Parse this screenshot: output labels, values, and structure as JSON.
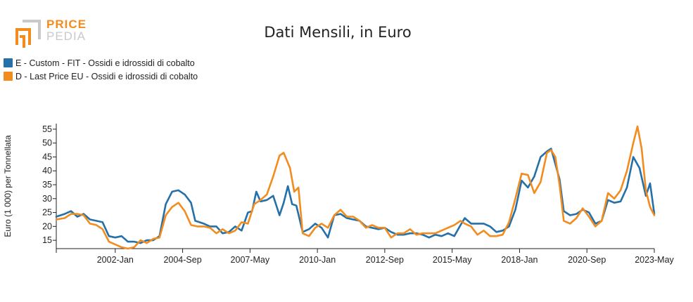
{
  "logo": {
    "line1": "PRICE",
    "line2": "PEDIA"
  },
  "colors": {
    "series1": "#2470a8",
    "series2": "#f28c1e",
    "axis": "#222222"
  },
  "chart_data": {
    "type": "line",
    "title": "Dati Mensili, in Euro",
    "ylabel": "Euro (1 000) per Tonnellata",
    "xlabel": "",
    "ylim": [
      12,
      57
    ],
    "xlim": [
      "1999-09",
      "2023-05"
    ],
    "yticks": [
      15,
      20,
      25,
      30,
      35,
      40,
      45,
      50,
      55
    ],
    "xticks": [
      {
        "date": "2002-01",
        "label": "2002-Jan"
      },
      {
        "date": "2004-09",
        "label": "2004-Sep"
      },
      {
        "date": "2007-05",
        "label": "2007-May"
      },
      {
        "date": "2010-01",
        "label": "2010-Jan"
      },
      {
        "date": "2012-09",
        "label": "2012-Sep"
      },
      {
        "date": "2015-05",
        "label": "2015-May"
      },
      {
        "date": "2018-01",
        "label": "2018-Jan"
      },
      {
        "date": "2020-09",
        "label": "2020-Sep"
      },
      {
        "date": "2023-05",
        "label": "2023-May"
      }
    ],
    "grid": false,
    "legend_position": "top-left",
    "series": [
      {
        "name": "E - Custom - FIT - Ossidi e idrossidi di cobalto",
        "color": "#2470a8",
        "points": [
          [
            "1999-09",
            23.5
          ],
          [
            "2000-01",
            24.5
          ],
          [
            "2000-04",
            25.5
          ],
          [
            "2000-07",
            23.5
          ],
          [
            "2000-10",
            24.5
          ],
          [
            "2001-01",
            22.5
          ],
          [
            "2001-04",
            22.0
          ],
          [
            "2001-07",
            21.5
          ],
          [
            "2001-10",
            16.5
          ],
          [
            "2002-01",
            16.0
          ],
          [
            "2002-04",
            16.5
          ],
          [
            "2002-07",
            14.5
          ],
          [
            "2002-10",
            14.5
          ],
          [
            "2003-01",
            14.0
          ],
          [
            "2003-04",
            15.0
          ],
          [
            "2003-07",
            15.0
          ],
          [
            "2003-10",
            16.5
          ],
          [
            "2004-01",
            28.0
          ],
          [
            "2004-04",
            32.5
          ],
          [
            "2004-07",
            33.0
          ],
          [
            "2004-10",
            31.5
          ],
          [
            "2005-01",
            28.5
          ],
          [
            "2005-03",
            22.0
          ],
          [
            "2005-07",
            21.0
          ],
          [
            "2005-10",
            20.0
          ],
          [
            "2006-01",
            20.0
          ],
          [
            "2006-04",
            17.5
          ],
          [
            "2006-07",
            18.0
          ],
          [
            "2006-10",
            20.0
          ],
          [
            "2007-01",
            18.5
          ],
          [
            "2007-04",
            25.0
          ],
          [
            "2007-06",
            25.5
          ],
          [
            "2007-08",
            32.5
          ],
          [
            "2007-10",
            29.0
          ],
          [
            "2008-01",
            29.5
          ],
          [
            "2008-04",
            31.0
          ],
          [
            "2008-07",
            24.0
          ],
          [
            "2008-09",
            28.5
          ],
          [
            "2008-11",
            34.5
          ],
          [
            "2009-01",
            28.0
          ],
          [
            "2009-03",
            27.5
          ],
          [
            "2009-06",
            18.0
          ],
          [
            "2009-09",
            19.0
          ],
          [
            "2009-12",
            21.0
          ],
          [
            "2010-03",
            19.5
          ],
          [
            "2010-06",
            16.0
          ],
          [
            "2010-09",
            24.0
          ],
          [
            "2010-12",
            24.5
          ],
          [
            "2011-03",
            23.0
          ],
          [
            "2011-06",
            22.5
          ],
          [
            "2011-09",
            22.0
          ],
          [
            "2011-12",
            20.0
          ],
          [
            "2012-03",
            19.5
          ],
          [
            "2012-06",
            19.0
          ],
          [
            "2012-09",
            19.5
          ],
          [
            "2012-12",
            18.0
          ],
          [
            "2013-03",
            17.0
          ],
          [
            "2013-06",
            17.0
          ],
          [
            "2013-09",
            17.5
          ],
          [
            "2013-12",
            17.5
          ],
          [
            "2014-03",
            17.0
          ],
          [
            "2014-06",
            16.0
          ],
          [
            "2014-09",
            17.0
          ],
          [
            "2014-12",
            16.5
          ],
          [
            "2015-03",
            17.5
          ],
          [
            "2015-06",
            16.5
          ],
          [
            "2015-09",
            20.5
          ],
          [
            "2015-11",
            23.0
          ],
          [
            "2016-02",
            21.0
          ],
          [
            "2016-05",
            21.0
          ],
          [
            "2016-08",
            21.0
          ],
          [
            "2016-11",
            20.0
          ],
          [
            "2017-02",
            18.0
          ],
          [
            "2017-05",
            18.5
          ],
          [
            "2017-08",
            20.0
          ],
          [
            "2017-11",
            26.0
          ],
          [
            "2018-02",
            36.5
          ],
          [
            "2018-05",
            34.0
          ],
          [
            "2018-08",
            38.0
          ],
          [
            "2018-11",
            45.0
          ],
          [
            "2019-02",
            47.0
          ],
          [
            "2019-04",
            48.0
          ],
          [
            "2019-06",
            42.5
          ],
          [
            "2019-08",
            37.0
          ],
          [
            "2019-10",
            25.5
          ],
          [
            "2020-01",
            24.0
          ],
          [
            "2020-04",
            24.5
          ],
          [
            "2020-07",
            26.0
          ],
          [
            "2020-10",
            25.0
          ],
          [
            "2021-01",
            21.0
          ],
          [
            "2021-04",
            22.0
          ],
          [
            "2021-07",
            29.5
          ],
          [
            "2021-10",
            28.5
          ],
          [
            "2022-01",
            29.0
          ],
          [
            "2022-04",
            34.0
          ],
          [
            "2022-07",
            45.0
          ],
          [
            "2022-10",
            41.0
          ],
          [
            "2023-01",
            31.0
          ],
          [
            "2023-03",
            35.5
          ],
          [
            "2023-05",
            24.5
          ]
        ]
      },
      {
        "name": "D - Last Price EU - Ossidi e idrossidi di cobalto",
        "color": "#f28c1e",
        "points": [
          [
            "1999-09",
            22.5
          ],
          [
            "2000-01",
            23.0
          ],
          [
            "2000-04",
            24.5
          ],
          [
            "2000-07",
            24.5
          ],
          [
            "2000-10",
            24.0
          ],
          [
            "2001-01",
            21.0
          ],
          [
            "2001-04",
            20.5
          ],
          [
            "2001-07",
            19.0
          ],
          [
            "2001-10",
            14.5
          ],
          [
            "2002-01",
            13.5
          ],
          [
            "2002-04",
            12.5
          ],
          [
            "2002-07",
            12.0
          ],
          [
            "2002-10",
            12.5
          ],
          [
            "2003-01",
            15.0
          ],
          [
            "2003-04",
            14.0
          ],
          [
            "2003-07",
            15.5
          ],
          [
            "2003-10",
            16.0
          ],
          [
            "2004-01",
            24.0
          ],
          [
            "2004-04",
            27.0
          ],
          [
            "2004-07",
            28.5
          ],
          [
            "2004-10",
            25.5
          ],
          [
            "2005-01",
            20.5
          ],
          [
            "2005-04",
            20.0
          ],
          [
            "2005-07",
            20.0
          ],
          [
            "2005-10",
            19.5
          ],
          [
            "2006-01",
            17.5
          ],
          [
            "2006-04",
            19.0
          ],
          [
            "2006-07",
            17.5
          ],
          [
            "2006-10",
            18.5
          ],
          [
            "2007-01",
            21.5
          ],
          [
            "2007-04",
            21.0
          ],
          [
            "2007-07",
            28.0
          ],
          [
            "2007-10",
            29.5
          ],
          [
            "2008-01",
            31.5
          ],
          [
            "2008-04",
            38.0
          ],
          [
            "2008-07",
            45.5
          ],
          [
            "2008-09",
            46.5
          ],
          [
            "2008-12",
            41.0
          ],
          [
            "2009-02",
            32.5
          ],
          [
            "2009-04",
            34.0
          ],
          [
            "2009-06",
            17.5
          ],
          [
            "2009-09",
            16.5
          ],
          [
            "2009-12",
            19.5
          ],
          [
            "2010-03",
            21.0
          ],
          [
            "2010-06",
            19.5
          ],
          [
            "2010-09",
            24.0
          ],
          [
            "2010-12",
            26.0
          ],
          [
            "2011-03",
            23.5
          ],
          [
            "2011-06",
            23.5
          ],
          [
            "2011-09",
            22.0
          ],
          [
            "2011-12",
            19.5
          ],
          [
            "2012-03",
            20.5
          ],
          [
            "2012-06",
            19.5
          ],
          [
            "2012-09",
            19.5
          ],
          [
            "2012-12",
            16.0
          ],
          [
            "2013-03",
            17.5
          ],
          [
            "2013-06",
            17.5
          ],
          [
            "2013-09",
            19.0
          ],
          [
            "2013-12",
            17.0
          ],
          [
            "2014-03",
            17.5
          ],
          [
            "2014-06",
            17.5
          ],
          [
            "2014-09",
            17.5
          ],
          [
            "2014-12",
            18.5
          ],
          [
            "2015-03",
            19.5
          ],
          [
            "2015-06",
            20.5
          ],
          [
            "2015-09",
            22.0
          ],
          [
            "2015-11",
            21.0
          ],
          [
            "2016-02",
            20.0
          ],
          [
            "2016-05",
            17.0
          ],
          [
            "2016-08",
            18.5
          ],
          [
            "2016-11",
            16.5
          ],
          [
            "2017-02",
            16.5
          ],
          [
            "2017-05",
            17.0
          ],
          [
            "2017-08",
            21.5
          ],
          [
            "2017-11",
            30.0
          ],
          [
            "2018-02",
            39.0
          ],
          [
            "2018-05",
            38.5
          ],
          [
            "2018-08",
            32.0
          ],
          [
            "2018-11",
            36.0
          ],
          [
            "2019-02",
            46.5
          ],
          [
            "2019-04",
            47.5
          ],
          [
            "2019-06",
            45.0
          ],
          [
            "2019-08",
            35.0
          ],
          [
            "2019-10",
            22.0
          ],
          [
            "2020-01",
            21.0
          ],
          [
            "2020-04",
            23.0
          ],
          [
            "2020-07",
            26.5
          ],
          [
            "2020-10",
            23.5
          ],
          [
            "2021-01",
            20.0
          ],
          [
            "2021-04",
            22.0
          ],
          [
            "2021-07",
            32.0
          ],
          [
            "2021-10",
            30.0
          ],
          [
            "2022-01",
            33.0
          ],
          [
            "2022-04",
            40.0
          ],
          [
            "2022-07",
            50.0
          ],
          [
            "2022-09",
            56.0
          ],
          [
            "2022-11",
            48.0
          ],
          [
            "2023-01",
            33.0
          ],
          [
            "2023-03",
            27.0
          ],
          [
            "2023-05",
            24.0
          ]
        ]
      }
    ]
  }
}
